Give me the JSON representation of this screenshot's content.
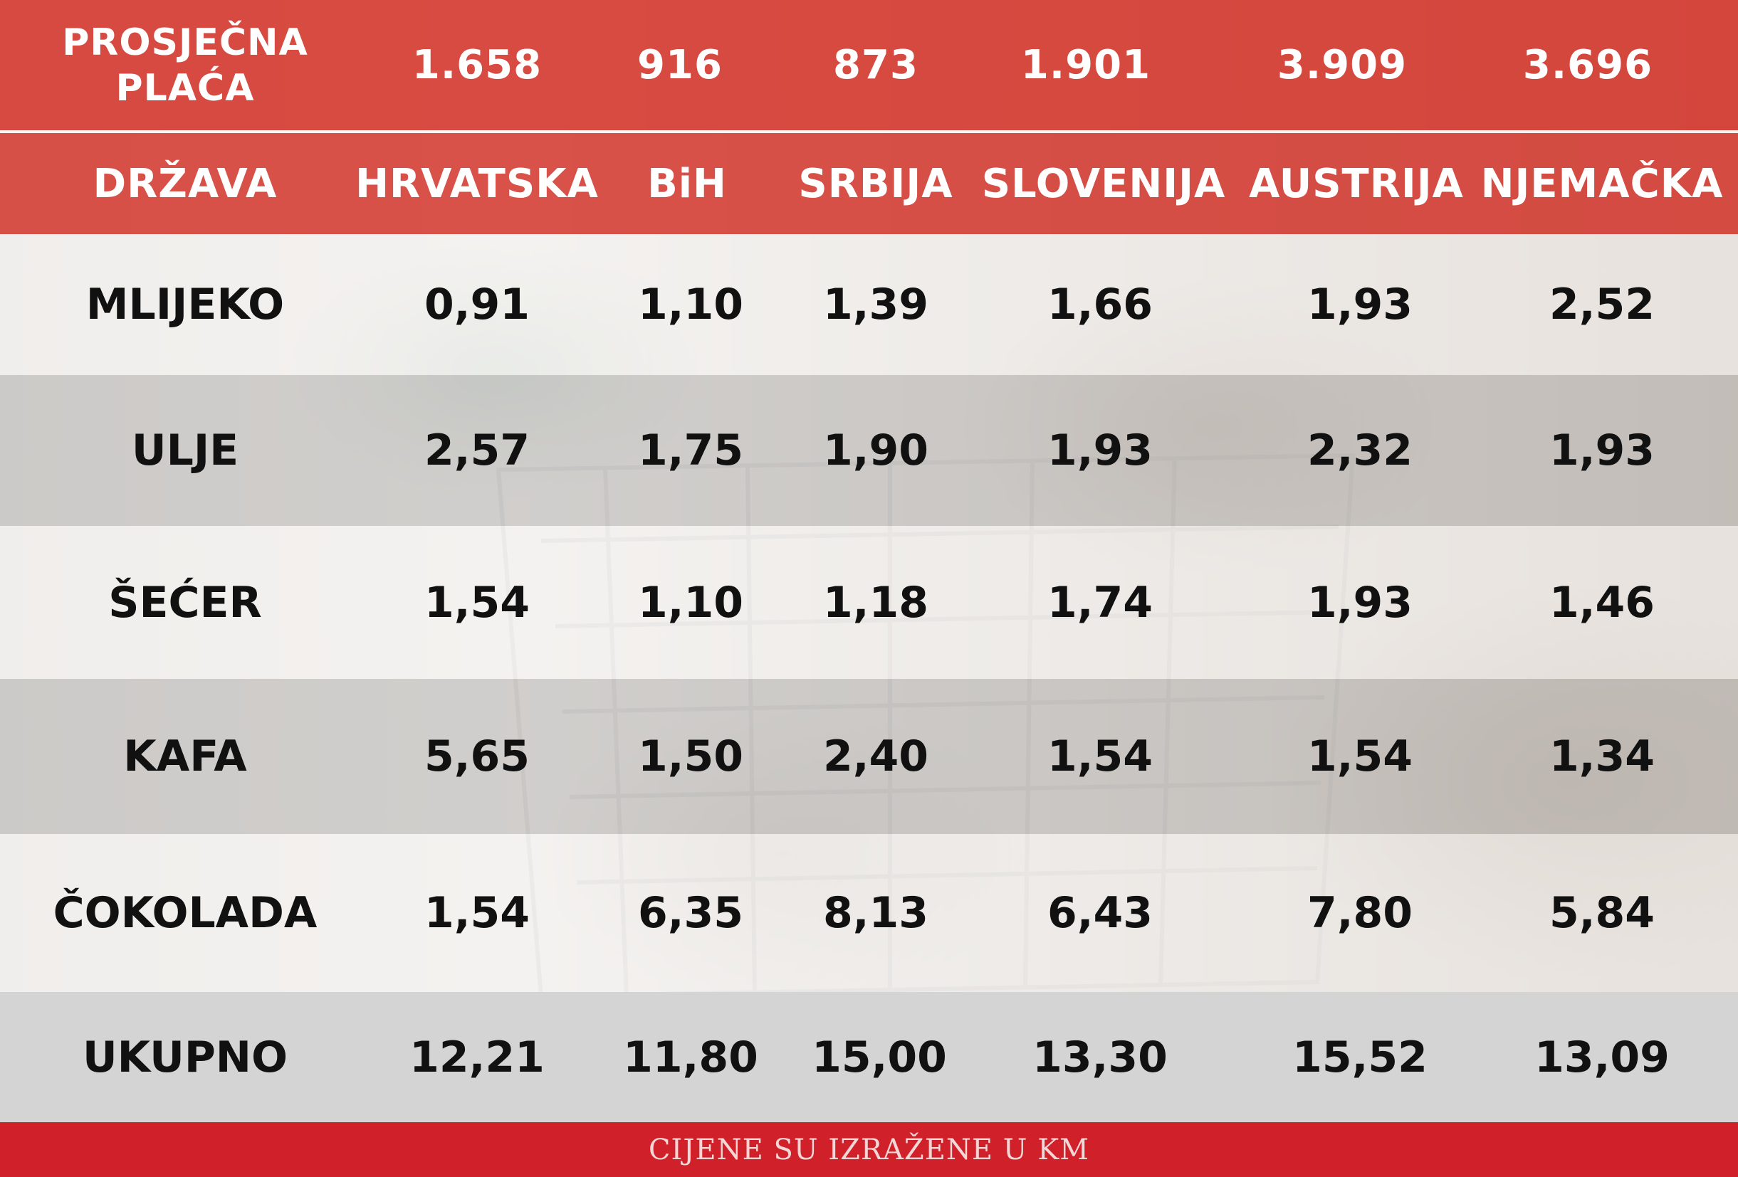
{
  "header": {
    "wage_label_line1": "PROSJEČNA",
    "wage_label_line2": "PLAĆA",
    "wages": [
      "1.658",
      "916",
      "873",
      "1.901",
      "3.909",
      "3.696"
    ],
    "country_label": "DRŽAVA",
    "countries": [
      "HRVATSKA",
      "BiH",
      "SRBIJA",
      "SLOVENIJA",
      "AUSTRIJA",
      "NJEMAČKA"
    ]
  },
  "rows": [
    {
      "item": "MLIJEKO",
      "prices": [
        "0,91",
        "1,10",
        "1,39",
        "1,66",
        "1,93",
        "2,52"
      ]
    },
    {
      "item": "ULJE",
      "prices": [
        "2,57",
        "1,75",
        "1,90",
        "1,93",
        "2,32",
        "1,93"
      ]
    },
    {
      "item": "ŠEĆER",
      "prices": [
        "1,54",
        "1,10",
        "1,18",
        "1,74",
        "1,93",
        "1,46"
      ]
    },
    {
      "item": "KAFA",
      "prices": [
        "5,65",
        "1,50",
        "2,40",
        "1,54",
        "1,54",
        "1,34"
      ]
    },
    {
      "item": "ČOKOLADA",
      "prices": [
        "1,54",
        "6,35",
        "8,13",
        "6,43",
        "7,80",
        "5,84"
      ]
    }
  ],
  "total": {
    "label": "UKUPNO",
    "values": [
      "12,21",
      "11,80",
      "15,00",
      "13,30",
      "15,52",
      "13,09"
    ]
  },
  "footer": {
    "note": "CIJENE SU IZRAŽENE U KM"
  },
  "colors": {
    "header_red": "#d63e34",
    "footer_red": "#d0202a",
    "total_gray": "#d4d4d4"
  }
}
